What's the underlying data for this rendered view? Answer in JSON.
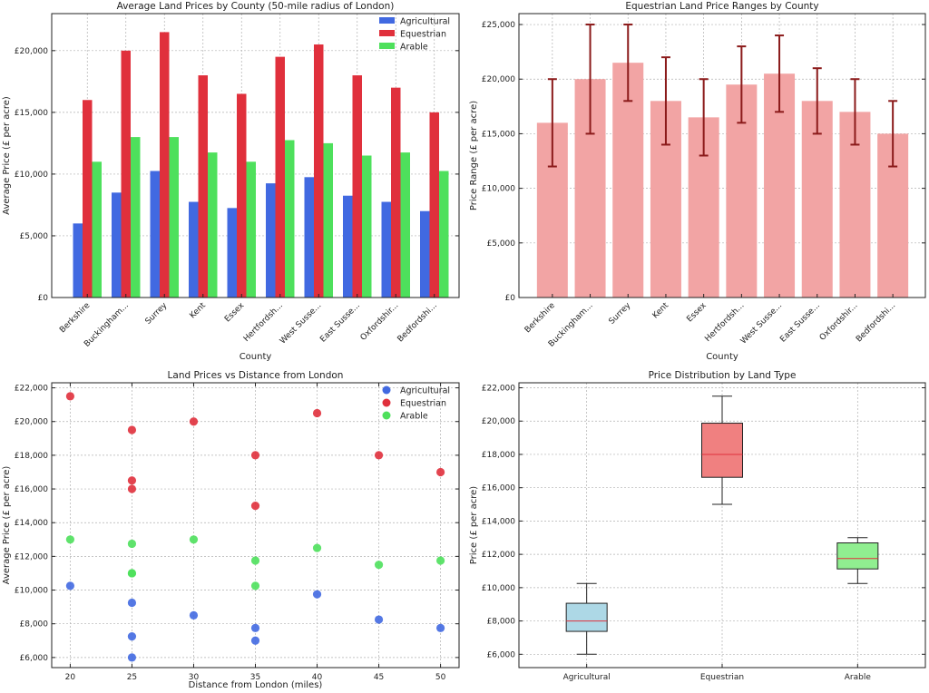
{
  "chart_data": [
    {
      "type": "bar",
      "title": "Average Land Prices by County (50-mile radius of London)",
      "xlabel": "County",
      "ylabel": "Average Price (£ per acre)",
      "categories": [
        "Berkshire",
        "Buckingham...",
        "Surrey",
        "Kent",
        "Essex",
        "Hertfordsh...",
        "West Susse...",
        "East Susse...",
        "Oxfordshir...",
        "Bedfordshi..."
      ],
      "ylim": [
        0,
        23000
      ],
      "yticks": [
        0,
        5000,
        10000,
        15000,
        20000
      ],
      "yticklabels": [
        "£0",
        "£5,000",
        "£10,000",
        "£15,000",
        "£20,000"
      ],
      "legend": "top-right",
      "series": [
        {
          "name": "Agricultural",
          "color": "#4169e1",
          "values": [
            6000,
            8500,
            10250,
            7750,
            7250,
            9250,
            9750,
            8250,
            7750,
            7000
          ]
        },
        {
          "name": "Equestrian",
          "color": "#e0303c",
          "values": [
            16000,
            20000,
            21500,
            18000,
            16500,
            19500,
            20500,
            18000,
            17000,
            15000
          ]
        },
        {
          "name": "Arable",
          "color": "#4ee05c",
          "values": [
            11000,
            13000,
            13000,
            11750,
            11000,
            12750,
            12500,
            11500,
            11750,
            10250
          ]
        }
      ]
    },
    {
      "type": "bar",
      "title": "Equestrian Land Price Ranges by County",
      "xlabel": "County",
      "ylabel": "Price Range (£ per acre)",
      "categories": [
        "Berkshire",
        "Buckingham...",
        "Surrey",
        "Kent",
        "Essex",
        "Hertfordsh...",
        "West Susse...",
        "East Susse...",
        "Oxfordshir...",
        "Bedfordshi..."
      ],
      "values": [
        16000,
        20000,
        21500,
        18000,
        16500,
        19500,
        20500,
        18000,
        17000,
        15000
      ],
      "error_low": [
        12000,
        15000,
        18000,
        14000,
        13000,
        16000,
        17000,
        15000,
        14000,
        12000
      ],
      "error_high": [
        20000,
        25000,
        25000,
        22000,
        20000,
        23000,
        24000,
        21000,
        20000,
        18000
      ],
      "bar_color": "#f2a4a4",
      "error_color": "#8b1a1a",
      "ylim": [
        0,
        26000
      ],
      "yticks": [
        0,
        5000,
        10000,
        15000,
        20000,
        25000
      ],
      "yticklabels": [
        "£0",
        "£5,000",
        "£10,000",
        "£15,000",
        "£20,000",
        "£25,000"
      ]
    },
    {
      "type": "scatter",
      "title": "Land Prices vs Distance from London",
      "xlabel": "Distance from London (miles)",
      "ylabel": "Average Price (£ per acre)",
      "x": [
        20,
        25,
        30,
        35,
        25,
        25,
        40,
        35,
        35,
        50
      ],
      "xlim": [
        18.5,
        51.5
      ],
      "xticks": [
        20,
        25,
        30,
        35,
        40,
        45,
        50
      ],
      "xticklabels": [
        "20",
        "25",
        "30",
        "35",
        "40",
        "45",
        "50"
      ],
      "ylim": [
        5400,
        22300
      ],
      "yticks": [
        6000,
        8000,
        10000,
        12000,
        14000,
        16000,
        18000,
        20000,
        22000
      ],
      "yticklabels": [
        "£6,000",
        "£8,000",
        "£10,000",
        "£12,000",
        "£14,000",
        "£16,000",
        "£18,000",
        "£20,000",
        "£22,000"
      ],
      "legend": "top-right",
      "series": [
        {
          "name": "Agricultural",
          "color": "#4169e1",
          "x": [
            20,
            25,
            25,
            25,
            30,
            35,
            35,
            40,
            45,
            50
          ],
          "values": [
            10250,
            9250,
            7250,
            6000,
            8500,
            7750,
            7000,
            9750,
            8250,
            7750
          ]
        },
        {
          "name": "Equestrian",
          "color": "#e0303c",
          "x": [
            20,
            25,
            25,
            25,
            30,
            35,
            35,
            40,
            45,
            50
          ],
          "values": [
            21500,
            19500,
            16500,
            16000,
            20000,
            18000,
            15000,
            20500,
            18000,
            17000
          ]
        },
        {
          "name": "Arable",
          "color": "#4ee05c",
          "x": [
            20,
            25,
            25,
            25,
            30,
            35,
            35,
            40,
            45,
            50
          ],
          "values": [
            13000,
            12750,
            11000,
            11000,
            13000,
            11750,
            10250,
            12500,
            11500,
            11750
          ]
        }
      ]
    },
    {
      "type": "box",
      "title": "Price Distribution by Land Type",
      "xlabel": "",
      "ylabel": "Price (£ per acre)",
      "categories": [
        "Agricultural",
        "Equestrian",
        "Arable"
      ],
      "ylim": [
        5200,
        22300
      ],
      "yticks": [
        6000,
        8000,
        10000,
        12000,
        14000,
        16000,
        18000,
        20000,
        22000
      ],
      "yticklabels": [
        "£6,000",
        "£8,000",
        "£10,000",
        "£12,000",
        "£14,000",
        "£16,000",
        "£18,000",
        "£20,000",
        "£22,000"
      ],
      "boxes": [
        {
          "name": "Agricultural",
          "color": "#add8e6",
          "min": 6000,
          "q1": 7375,
          "median": 8000,
          "q3": 9062.5,
          "max": 10250
        },
        {
          "name": "Equestrian",
          "color": "#f08080",
          "min": 15000,
          "q1": 16625,
          "median": 18000,
          "q3": 19875,
          "max": 21500
        },
        {
          "name": "Arable",
          "color": "#90ee90",
          "min": 10250,
          "q1": 11125,
          "median": 11750,
          "q3": 12687.5,
          "max": 13000
        }
      ],
      "median_color": "#e0303c"
    }
  ]
}
